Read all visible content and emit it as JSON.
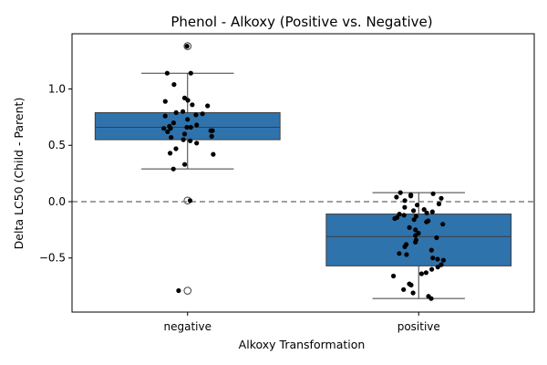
{
  "chart_data": {
    "type": "box",
    "title": "Phenol - Alkoxy (Positive vs. Negative)",
    "xlabel": "Alkoxy Transformation",
    "ylabel": "Delta LC50 (Child - Parent)",
    "categories": [
      "negative",
      "positive"
    ],
    "ylim": [
      -0.98,
      1.49
    ],
    "yticks": [
      -0.5,
      0.0,
      0.5,
      1.0
    ],
    "ytick_labels": [
      "−0.5",
      "0.0",
      "0.5",
      "1.0"
    ],
    "reference_line": 0.0,
    "grid": false,
    "colors": {
      "box": "#2f73ad",
      "points": "#000000",
      "reference": "#808080"
    },
    "boxes": [
      {
        "category": "negative",
        "whisker_low": 0.29,
        "q1": 0.55,
        "median": 0.66,
        "q3": 0.79,
        "whisker_high": 1.14,
        "outliers": [
          1.38,
          0.01,
          -0.79
        ]
      },
      {
        "category": "positive",
        "whisker_low": -0.86,
        "q1": -0.57,
        "median": -0.31,
        "q3": -0.11,
        "whisker_high": 0.08,
        "outliers": []
      }
    ],
    "points": [
      {
        "category": "negative",
        "values": [
          1.38,
          1.14,
          1.14,
          1.04,
          0.92,
          0.9,
          0.89,
          0.85,
          0.86,
          0.8,
          0.79,
          0.78,
          0.77,
          0.76,
          0.73,
          0.7,
          0.68,
          0.67,
          0.66,
          0.66,
          0.65,
          0.65,
          0.63,
          0.63,
          0.62,
          0.6,
          0.58,
          0.57,
          0.55,
          0.54,
          0.52,
          0.47,
          0.43,
          0.42,
          0.33,
          0.29,
          0.01,
          -0.79
        ]
      },
      {
        "category": "positive",
        "values": [
          0.08,
          0.07,
          0.06,
          0.05,
          0.04,
          0.03,
          0.01,
          -0.02,
          -0.03,
          -0.05,
          -0.07,
          -0.08,
          -0.09,
          -0.1,
          -0.11,
          -0.12,
          -0.13,
          -0.14,
          -0.15,
          -0.16,
          -0.17,
          -0.18,
          -0.2,
          -0.23,
          -0.25,
          -0.28,
          -0.3,
          -0.32,
          -0.34,
          -0.36,
          -0.38,
          -0.4,
          -0.43,
          -0.46,
          -0.47,
          -0.5,
          -0.51,
          -0.52,
          -0.56,
          -0.58,
          -0.6,
          -0.63,
          -0.64,
          -0.66,
          -0.73,
          -0.74,
          -0.78,
          -0.81,
          -0.84,
          -0.86
        ]
      }
    ]
  }
}
